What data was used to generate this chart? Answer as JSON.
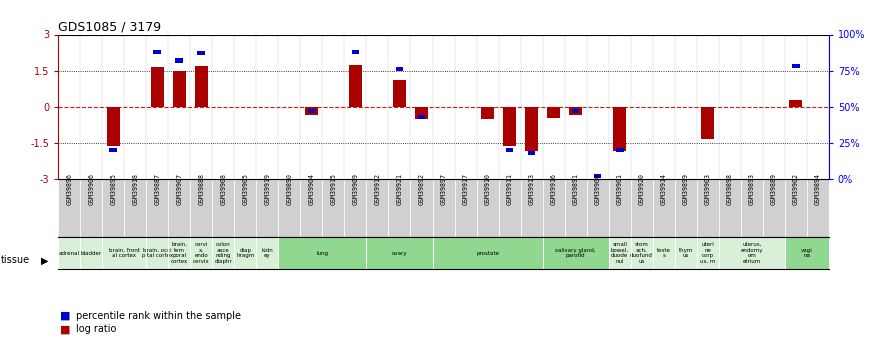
{
  "title": "GDS1085 / 3179",
  "samples": [
    "GSM39896",
    "GSM39906",
    "GSM39895",
    "GSM39918",
    "GSM39887",
    "GSM39907",
    "GSM39888",
    "GSM39908",
    "GSM39905",
    "GSM39919",
    "GSM39890",
    "GSM39904",
    "GSM39915",
    "GSM39909",
    "GSM39912",
    "GSM39921",
    "GSM39892",
    "GSM39897",
    "GSM39917",
    "GSM39910",
    "GSM39911",
    "GSM39913",
    "GSM39916",
    "GSM39891",
    "GSM39900",
    "GSM39901",
    "GSM39920",
    "GSM39914",
    "GSM39899",
    "GSM39903",
    "GSM39898",
    "GSM39893",
    "GSM39889",
    "GSM39902",
    "GSM39894"
  ],
  "log_ratio": [
    0.0,
    0.0,
    -1.62,
    0.0,
    1.65,
    1.48,
    1.68,
    0.0,
    0.0,
    0.0,
    0.0,
    -0.35,
    0.0,
    1.72,
    0.0,
    1.1,
    -0.52,
    0.0,
    0.0,
    -0.52,
    -1.63,
    -1.82,
    -0.45,
    -0.35,
    0.0,
    -1.85,
    0.0,
    0.0,
    0.0,
    -1.35,
    0.0,
    0.0,
    0.0,
    0.3,
    0.0
  ],
  "percentile": [
    null,
    null,
    20,
    null,
    88,
    82,
    87,
    null,
    null,
    null,
    null,
    47,
    null,
    88,
    null,
    76,
    43,
    null,
    null,
    null,
    20,
    18,
    null,
    47,
    2,
    20,
    null,
    null,
    null,
    null,
    null,
    null,
    null,
    78,
    null
  ],
  "tissues": [
    {
      "label": "adrenal",
      "start": 0,
      "end": 1,
      "color": "#d8f0d8"
    },
    {
      "label": "bladder",
      "start": 1,
      "end": 2,
      "color": "#d8f0d8"
    },
    {
      "label": "brain, front\nal cortex",
      "start": 2,
      "end": 4,
      "color": "#d8f0d8"
    },
    {
      "label": "brain, occi\npital cortex",
      "start": 4,
      "end": 5,
      "color": "#d8f0d8"
    },
    {
      "label": "brain,\ntem\nporal\ncortex",
      "start": 5,
      "end": 6,
      "color": "#d8f0d8"
    },
    {
      "label": "cervi\nx,\nendo\ncervix",
      "start": 6,
      "end": 7,
      "color": "#d8f0d8"
    },
    {
      "label": "colon\nasce\nnding\ndiaphr",
      "start": 7,
      "end": 8,
      "color": "#d8f0d8"
    },
    {
      "label": "diap\nhragm",
      "start": 8,
      "end": 9,
      "color": "#d8f0d8"
    },
    {
      "label": "kidn\ney",
      "start": 9,
      "end": 10,
      "color": "#d8f0d8"
    },
    {
      "label": "lung",
      "start": 10,
      "end": 14,
      "color": "#90d890"
    },
    {
      "label": "ovary",
      "start": 14,
      "end": 17,
      "color": "#90d890"
    },
    {
      "label": "prostate",
      "start": 17,
      "end": 22,
      "color": "#90d890"
    },
    {
      "label": "salivary gland,\nparotid",
      "start": 22,
      "end": 25,
      "color": "#90d890"
    },
    {
      "label": "small\nbowel,\nduode\nnul",
      "start": 25,
      "end": 26,
      "color": "#d8f0d8"
    },
    {
      "label": "stom\nach,\nduofund\nus",
      "start": 26,
      "end": 27,
      "color": "#d8f0d8"
    },
    {
      "label": "teste\ns",
      "start": 27,
      "end": 28,
      "color": "#d8f0d8"
    },
    {
      "label": "thym\nus",
      "start": 28,
      "end": 29,
      "color": "#d8f0d8"
    },
    {
      "label": "uteri\nne\ncorp\nus, m",
      "start": 29,
      "end": 30,
      "color": "#d8f0d8"
    },
    {
      "label": "uterus,\nendomy\nom\netrium",
      "start": 30,
      "end": 33,
      "color": "#d8f0d8"
    },
    {
      "label": "vagi\nna",
      "start": 33,
      "end": 35,
      "color": "#90d890"
    }
  ],
  "sample_bg_color": "#d0d0d0",
  "ylim": [
    -3,
    3
  ],
  "bar_color_red": "#aa0000",
  "bar_color_blue": "#0000cc",
  "zero_line_color": "#cc0000",
  "background_color": "#ffffff",
  "right_axis_ticks": [
    0,
    25,
    50,
    75,
    100
  ],
  "right_axis_tick_positions": [
    -3,
    -1.5,
    0,
    1.5,
    3
  ]
}
